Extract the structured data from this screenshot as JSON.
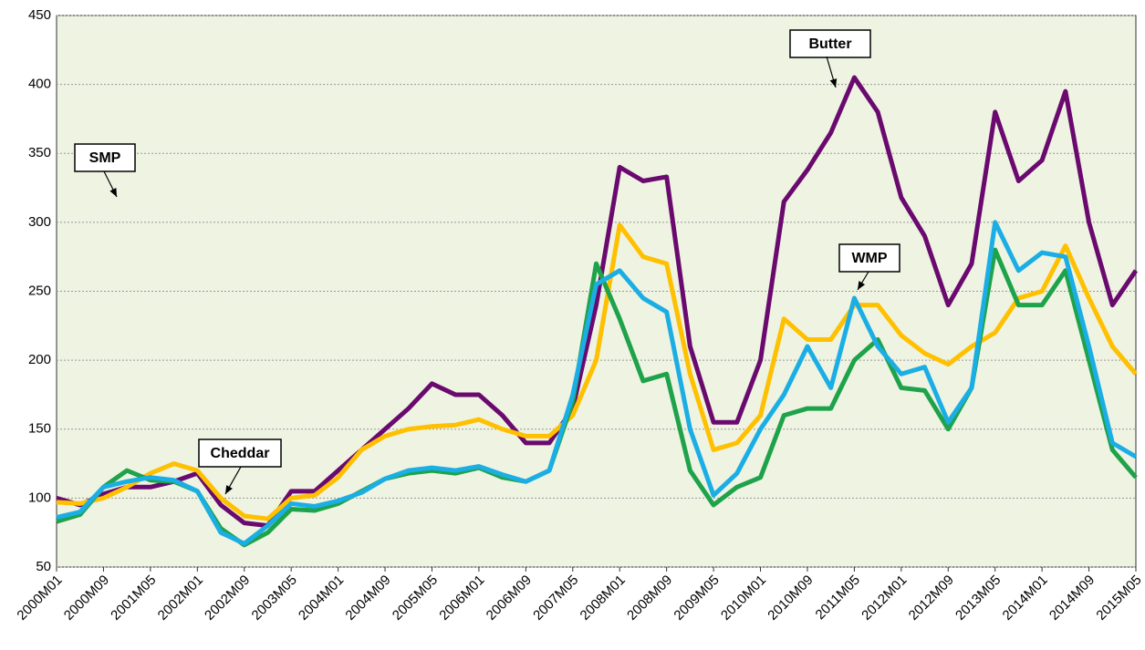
{
  "chart_data": {
    "type": "line",
    "categories": [
      "2000M01",
      null,
      "2000M09",
      null,
      "2001M05",
      null,
      "2002M01",
      null,
      "2002M09",
      null,
      "2003M05",
      null,
      "2004M01",
      null,
      "2004M09",
      null,
      "2005M05",
      null,
      "2006M01",
      null,
      "2006M09",
      null,
      "2007M05",
      null,
      "2008M01",
      null,
      "2008M09",
      null,
      "2009M05",
      null,
      "2010M01",
      null,
      "2010M09",
      null,
      "2011M05",
      null,
      "2012M01",
      null,
      "2012M09",
      null,
      "2013M05",
      null,
      "2014M01",
      null,
      "2014M09",
      null,
      "2015M05"
    ],
    "series": [
      {
        "name": "Butter",
        "color": "#6a0a6f",
        "values": [
          100,
          95,
          103,
          108,
          108,
          112,
          118,
          95,
          82,
          80,
          105,
          105,
          120,
          135,
          150,
          165,
          183,
          175,
          175,
          160,
          140,
          140,
          165,
          240,
          340,
          330,
          333,
          210,
          155,
          155,
          200,
          315,
          338,
          365,
          405,
          380,
          318,
          290,
          240,
          270,
          380,
          330,
          345,
          395,
          300,
          240,
          265
        ]
      },
      {
        "name": "Cheddar",
        "color": "#ffc000",
        "values": [
          97,
          96,
          100,
          108,
          118,
          125,
          120,
          100,
          87,
          85,
          100,
          102,
          115,
          135,
          145,
          150,
          152,
          153,
          157,
          150,
          145,
          145,
          160,
          200,
          298,
          275,
          270,
          190,
          135,
          140,
          160,
          230,
          215,
          215,
          240,
          240,
          218,
          205,
          197,
          210,
          220,
          245,
          250,
          283,
          245,
          210,
          190
        ]
      },
      {
        "name": "SMP",
        "color": "#1ea24a",
        "values": [
          83,
          88,
          108,
          120,
          113,
          112,
          105,
          78,
          66,
          75,
          92,
          91,
          96,
          105,
          114,
          118,
          120,
          118,
          122,
          115,
          112,
          120,
          170,
          270,
          230,
          185,
          190,
          120,
          95,
          108,
          115,
          160,
          165,
          165,
          200,
          215,
          180,
          178,
          150,
          180,
          280,
          240,
          240,
          265,
          200,
          135,
          115
        ]
      },
      {
        "name": "WMP",
        "color": "#1aaee5",
        "values": [
          86,
          90,
          108,
          112,
          115,
          113,
          105,
          75,
          67,
          80,
          96,
          94,
          98,
          104,
          114,
          120,
          122,
          120,
          123,
          117,
          112,
          120,
          175,
          255,
          265,
          245,
          235,
          150,
          102,
          118,
          150,
          175,
          210,
          180,
          245,
          210,
          190,
          195,
          155,
          180,
          300,
          265,
          278,
          275,
          210,
          140,
          130
        ]
      }
    ],
    "ylim": [
      50,
      450
    ],
    "yticks": [
      50,
      100,
      150,
      200,
      250,
      300,
      350,
      400,
      450
    ],
    "grid": true
  }
}
